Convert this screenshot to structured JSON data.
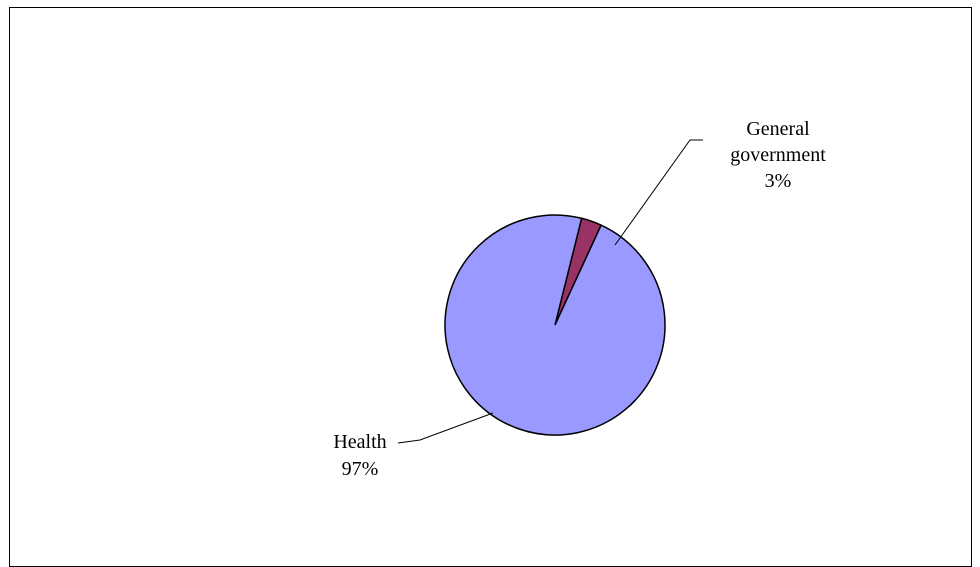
{
  "chart_data": {
    "type": "pie",
    "title": "",
    "slices": [
      {
        "label": "Health",
        "value": 97,
        "percent_label": "97%",
        "color": "#9999FF"
      },
      {
        "label": "General government",
        "label_lines": [
          "General",
          "government"
        ],
        "value": 3,
        "percent_label": "3%",
        "color": "#993366"
      }
    ],
    "legend": "none",
    "data_labels": "category name and percentage, with leader lines"
  },
  "colors": {
    "border": "#000000",
    "background": "#FFFFFF"
  }
}
